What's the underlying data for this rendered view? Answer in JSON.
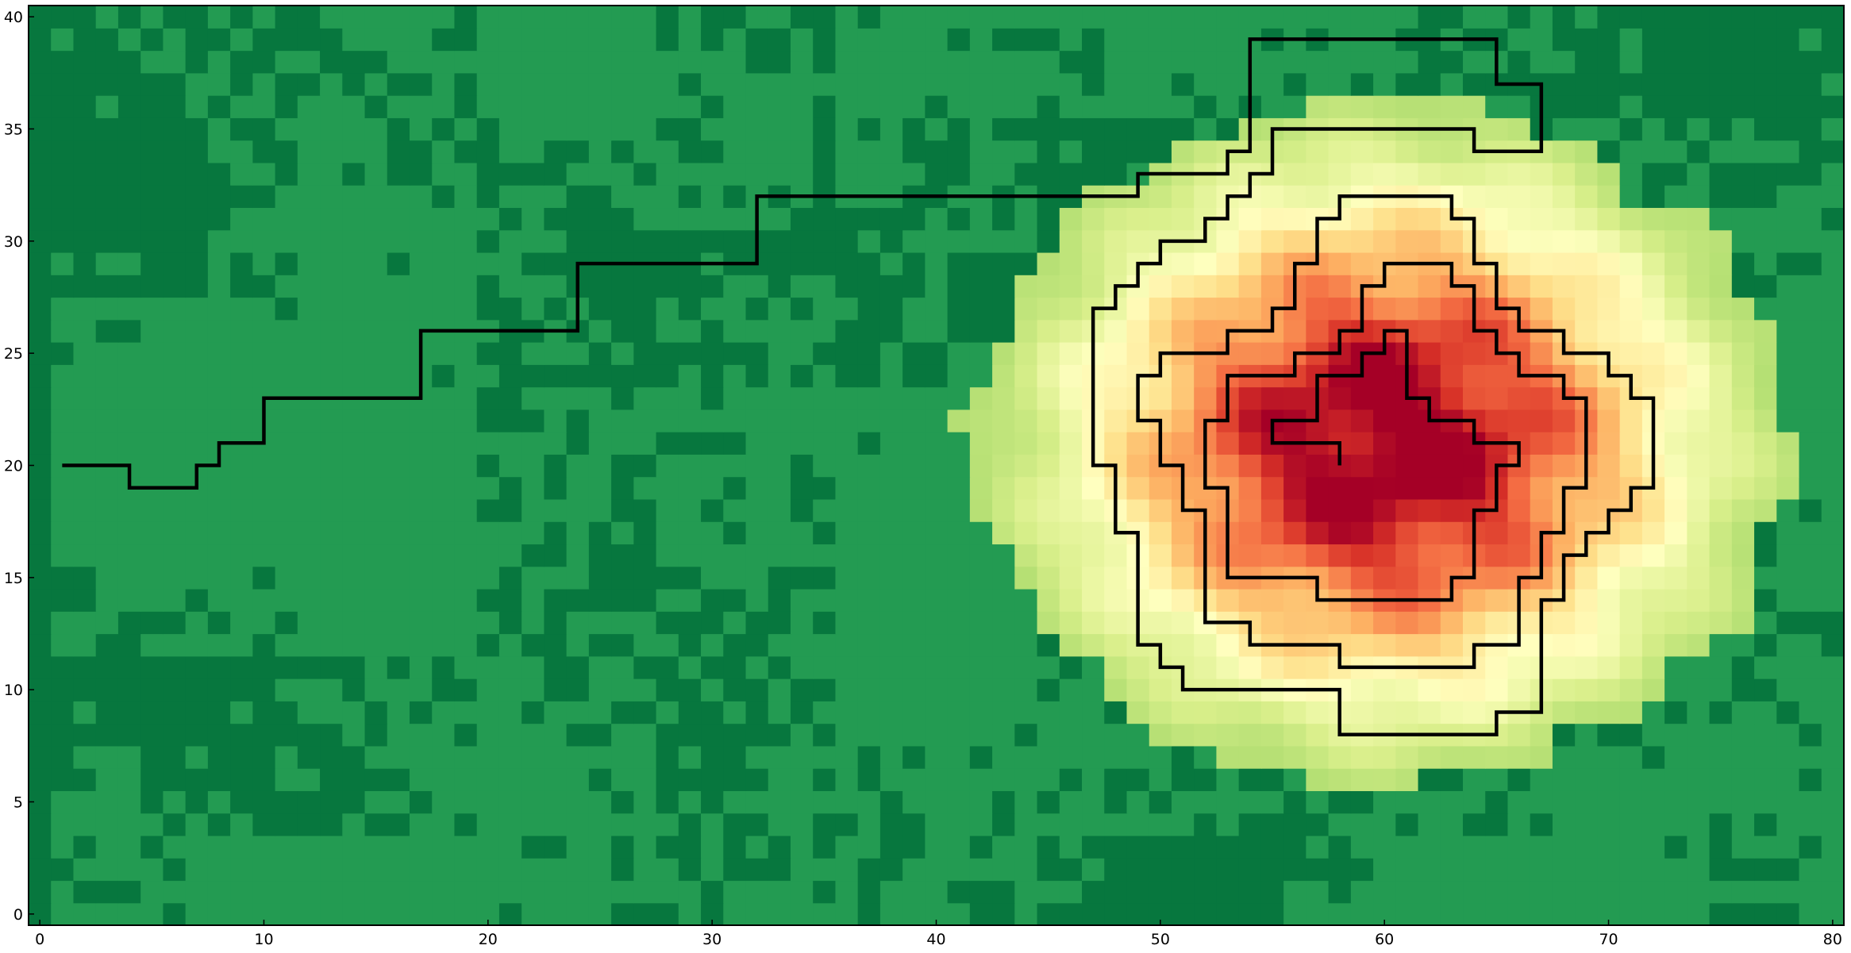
{
  "chart_data": {
    "type": "heatmap",
    "title": "",
    "xlabel": "",
    "ylabel": "",
    "xlim": [
      -0.5,
      80.5
    ],
    "ylim": [
      -0.5,
      40.5
    ],
    "grid": false,
    "colormap": "RdYlGn_r",
    "colormap_stops": [
      "#006837",
      "#1a9850",
      "#66bd63",
      "#a6d96a",
      "#d9ef8b",
      "#ffffbf",
      "#fee08b",
      "#fdae61",
      "#f46d43",
      "#d73027",
      "#a50026"
    ],
    "background_levels": {
      "darker": "#07773e",
      "lighter": "#239b52"
    },
    "x_ticks": [
      {
        "value": 0,
        "label": "0"
      },
      {
        "value": 10,
        "label": "10"
      },
      {
        "value": 20,
        "label": "20"
      },
      {
        "value": 30,
        "label": "30"
      },
      {
        "value": 40,
        "label": "40"
      },
      {
        "value": 50,
        "label": "50"
      },
      {
        "value": 60,
        "label": "60"
      },
      {
        "value": 70,
        "label": "70"
      },
      {
        "value": 80,
        "label": "80"
      }
    ],
    "y_ticks": [
      {
        "value": 0,
        "label": "0"
      },
      {
        "value": 5,
        "label": "5"
      },
      {
        "value": 10,
        "label": "10"
      },
      {
        "value": 15,
        "label": "15"
      },
      {
        "value": 20,
        "label": "20"
      },
      {
        "value": 25,
        "label": "25"
      },
      {
        "value": 30,
        "label": "30"
      },
      {
        "value": 35,
        "label": "35"
      },
      {
        "value": 40,
        "label": "40"
      }
    ],
    "peak": {
      "x": 60,
      "y": 21,
      "value_level": 1.0
    },
    "contour_levels_visible": 5,
    "contours": [
      {
        "name": "path",
        "points": [
          [
            1,
            20
          ],
          [
            4,
            20
          ],
          [
            4,
            19
          ],
          [
            7,
            19
          ],
          [
            7,
            20
          ],
          [
            8,
            20
          ],
          [
            8,
            21
          ],
          [
            10,
            21
          ],
          [
            10,
            23
          ],
          [
            17,
            23
          ],
          [
            17,
            26
          ],
          [
            24,
            26
          ],
          [
            24,
            29
          ],
          [
            32,
            29
          ],
          [
            32,
            32
          ],
          [
            49,
            32
          ],
          [
            49,
            33
          ],
          [
            53,
            33
          ],
          [
            53,
            34
          ],
          [
            54,
            34
          ],
          [
            54,
            39
          ],
          [
            65,
            39
          ],
          [
            65,
            37
          ],
          [
            67,
            37
          ],
          [
            67,
            34
          ],
          [
            64,
            34
          ],
          [
            64,
            35
          ],
          [
            55,
            35
          ],
          [
            55,
            33
          ],
          [
            54,
            33
          ],
          [
            54,
            32
          ],
          [
            53,
            32
          ],
          [
            53,
            31
          ],
          [
            52,
            31
          ],
          [
            52,
            30
          ],
          [
            50,
            30
          ],
          [
            50,
            29
          ],
          [
            49,
            29
          ],
          [
            49,
            28
          ],
          [
            48,
            28
          ],
          [
            48,
            27
          ],
          [
            47,
            27
          ],
          [
            47,
            20
          ],
          [
            48,
            20
          ],
          [
            48,
            17
          ],
          [
            49,
            17
          ],
          [
            49,
            12
          ],
          [
            50,
            12
          ],
          [
            50,
            11
          ],
          [
            51,
            11
          ],
          [
            51,
            10
          ],
          [
            58,
            10
          ],
          [
            58,
            8
          ],
          [
            65,
            8
          ],
          [
            65,
            9
          ],
          [
            67,
            9
          ],
          [
            67,
            14
          ],
          [
            68,
            14
          ],
          [
            68,
            16
          ],
          [
            69,
            16
          ],
          [
            69,
            17
          ],
          [
            70,
            17
          ],
          [
            70,
            18
          ],
          [
            71,
            18
          ],
          [
            71,
            19
          ],
          [
            72,
            19
          ],
          [
            72,
            23
          ],
          [
            71,
            23
          ],
          [
            71,
            24
          ],
          [
            70,
            24
          ],
          [
            70,
            25
          ],
          [
            68,
            25
          ],
          [
            68,
            26
          ],
          [
            66,
            26
          ],
          [
            66,
            27
          ],
          [
            65,
            27
          ],
          [
            65,
            29
          ],
          [
            64,
            29
          ],
          [
            64,
            31
          ],
          [
            63,
            31
          ],
          [
            63,
            32
          ],
          [
            58,
            32
          ],
          [
            58,
            31
          ],
          [
            57,
            31
          ],
          [
            57,
            29
          ],
          [
            56,
            29
          ],
          [
            56,
            27
          ],
          [
            55,
            27
          ],
          [
            55,
            26
          ],
          [
            53,
            26
          ],
          [
            53,
            25
          ],
          [
            50,
            25
          ],
          [
            50,
            24
          ],
          [
            49,
            24
          ],
          [
            49,
            22
          ],
          [
            50,
            22
          ],
          [
            50,
            20
          ],
          [
            51,
            20
          ],
          [
            51,
            18
          ],
          [
            52,
            18
          ],
          [
            52,
            13
          ],
          [
            54,
            13
          ],
          [
            54,
            12
          ],
          [
            58,
            12
          ],
          [
            58,
            11
          ],
          [
            64,
            11
          ],
          [
            64,
            12
          ],
          [
            66,
            12
          ],
          [
            66,
            15
          ],
          [
            67,
            15
          ],
          [
            67,
            17
          ],
          [
            68,
            17
          ],
          [
            68,
            19
          ],
          [
            69,
            19
          ],
          [
            69,
            23
          ],
          [
            68,
            23
          ],
          [
            68,
            24
          ],
          [
            66,
            24
          ],
          [
            66,
            25
          ],
          [
            65,
            25
          ],
          [
            65,
            26
          ],
          [
            64,
            26
          ],
          [
            64,
            28
          ],
          [
            63,
            28
          ],
          [
            63,
            29
          ],
          [
            60,
            29
          ],
          [
            60,
            28
          ],
          [
            59,
            28
          ],
          [
            59,
            26
          ],
          [
            58,
            26
          ],
          [
            58,
            25
          ],
          [
            56,
            25
          ],
          [
            56,
            24
          ],
          [
            53,
            24
          ],
          [
            53,
            22
          ],
          [
            52,
            22
          ],
          [
            52,
            19
          ],
          [
            53,
            19
          ],
          [
            53,
            15
          ],
          [
            57,
            15
          ],
          [
            57,
            14
          ],
          [
            63,
            14
          ],
          [
            63,
            15
          ],
          [
            64,
            15
          ],
          [
            64,
            18
          ],
          [
            65,
            18
          ],
          [
            65,
            20
          ],
          [
            66,
            20
          ],
          [
            66,
            21
          ],
          [
            64,
            21
          ],
          [
            64,
            22
          ],
          [
            62,
            22
          ],
          [
            62,
            23
          ],
          [
            61,
            23
          ],
          [
            61,
            26
          ],
          [
            60,
            26
          ],
          [
            60,
            25
          ],
          [
            59,
            25
          ],
          [
            59,
            24
          ],
          [
            57,
            24
          ],
          [
            57,
            22
          ],
          [
            55,
            22
          ],
          [
            55,
            21
          ],
          [
            58,
            21
          ],
          [
            58,
            20
          ]
        ]
      }
    ]
  }
}
